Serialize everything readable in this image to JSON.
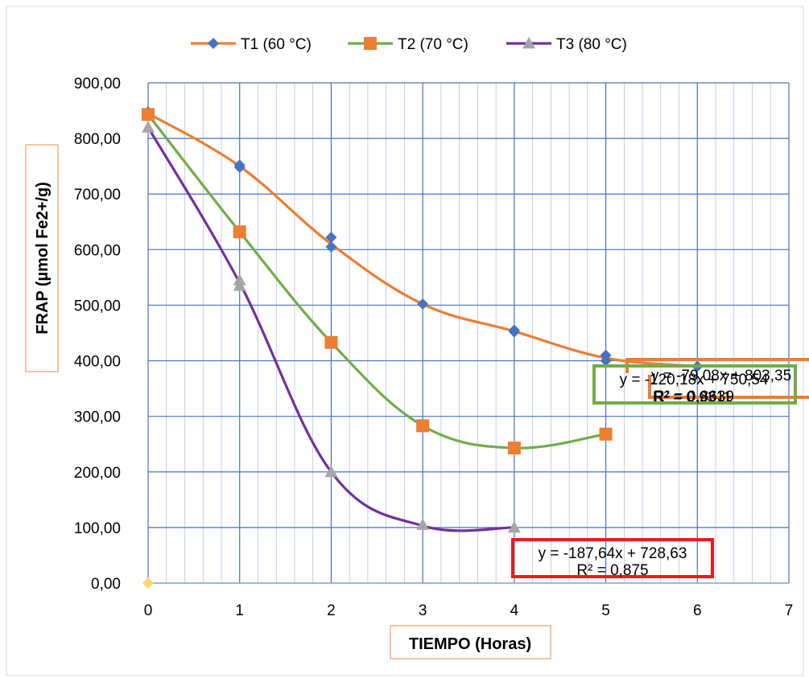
{
  "chart_data": {
    "type": "line",
    "xlabel": "TIEMPO (Horas)",
    "ylabel": "FRAP (µmol Fe2+/g)",
    "xlim": [
      0,
      7
    ],
    "ylim": [
      0,
      900
    ],
    "x_ticks": [
      "0",
      "1",
      "2",
      "3",
      "4",
      "5",
      "6",
      "7"
    ],
    "y_ticks": [
      "0,00",
      "100,00",
      "200,00",
      "300,00",
      "400,00",
      "500,00",
      "600,00",
      "700,00",
      "800,00",
      "900,00"
    ],
    "grid": true,
    "legend_position": "top",
    "series": [
      {
        "name": "T1 (60 °C)",
        "color": "#ED7D31",
        "marker_color": "#4472C4",
        "marker": "diamond",
        "x": [
          0,
          1,
          2,
          3,
          4,
          5,
          6
        ],
        "y": [
          845,
          750,
          610,
          502,
          453,
          405,
          390
        ],
        "replicates": [
          [
            0,
            845
          ],
          [
            0,
            848
          ],
          [
            1,
            752
          ],
          [
            1,
            748
          ],
          [
            2,
            622
          ],
          [
            2,
            605
          ],
          [
            3,
            502
          ],
          [
            4,
            455
          ],
          [
            4,
            452
          ],
          [
            5,
            410
          ],
          [
            5,
            400
          ],
          [
            6,
            390
          ]
        ],
        "trendline": {
          "equation": "y = -79,08x + 803,35",
          "r2": "R² = 0,9311",
          "box_color": "#ED7D31"
        }
      },
      {
        "name": "T2 (70 °C)",
        "color": "#70AD47",
        "marker_color": "#ED7D31",
        "marker": "square",
        "x": [
          0,
          1,
          2,
          3,
          4,
          5
        ],
        "y": [
          843,
          632,
          433,
          283,
          243,
          268
        ],
        "replicates": [
          [
            0,
            843
          ],
          [
            1,
            632
          ],
          [
            2,
            433
          ],
          [
            3,
            283
          ],
          [
            4,
            243
          ],
          [
            5,
            268
          ]
        ],
        "trendline": {
          "equation": "y = -120,18x + 750,54",
          "r2": "R² = 0,8639",
          "box_color": "#70AD47"
        }
      },
      {
        "name": "T3 (80 °C)",
        "color": "#7030A0",
        "marker_color": "#A5A5A5",
        "marker": "triangle",
        "x": [
          0,
          1,
          2,
          3,
          4
        ],
        "y": [
          820,
          540,
          200,
          103,
          100
        ],
        "replicates": [
          [
            0,
            820
          ],
          [
            1,
            545
          ],
          [
            1,
            535
          ],
          [
            2,
            200
          ],
          [
            3,
            105
          ],
          [
            4,
            100
          ]
        ],
        "trendline": {
          "equation": "y = -187,64x + 728,63",
          "r2": "R² = 0,875",
          "box_color": "#E81C1C"
        }
      }
    ],
    "extra_point": {
      "x": 0,
      "y": 0,
      "color": "#FFD966"
    }
  }
}
